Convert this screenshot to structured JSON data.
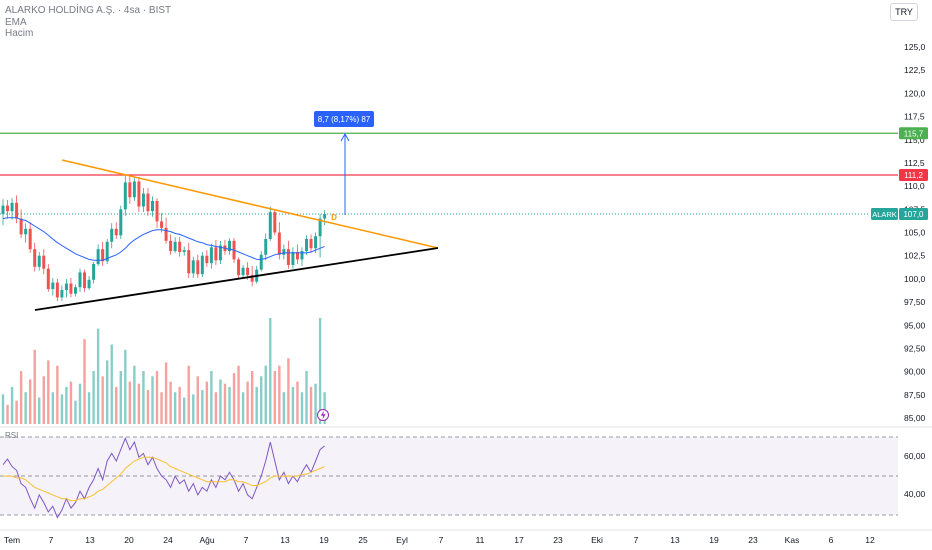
{
  "header": {
    "symbol_line": "ALARKO HOLDİNG A.Ş. · 4sa · BIST",
    "ema_label": "EMA",
    "volume_label": "Hacim",
    "currency": "TRY",
    "rsi_label": "RSI"
  },
  "colors": {
    "up": "#26a69a",
    "down": "#ef5350",
    "ema": "#2962ff",
    "trend_upper": "#ff9800",
    "trend_lower": "#000000",
    "green_line": "#4caf50",
    "red_line": "#f23645",
    "measure": "#2962ff",
    "rsi_line": "#7e57c2",
    "rsi_ma": "#fbc02d",
    "rsi_band": "#7e57c2"
  },
  "chart_data": {
    "type": "candlestick",
    "price_axis": {
      "ticks": [
        "125,0",
        "122,5",
        "120,0",
        "117,5",
        "115,0",
        "112,5",
        "110,0",
        "107,5",
        "105,0",
        "102,5",
        "100,0",
        "97,50",
        "95,00",
        "92,50",
        "90,00",
        "87,50",
        "85,00"
      ],
      "range": [
        85,
        125
      ]
    },
    "time_axis": {
      "labels": [
        "Tem",
        "7",
        "13",
        "20",
        "24",
        "Ağu",
        "7",
        "13",
        "19",
        "25",
        "Eyl",
        "7",
        "11",
        "17",
        "23",
        "Eki",
        "7",
        "13",
        "19",
        "23",
        "Kas",
        "6",
        "12"
      ]
    },
    "price_tags": [
      {
        "label": "115,7",
        "value": 115.7,
        "color": "#4caf50"
      },
      {
        "label": "111,2",
        "value": 111.2,
        "color": "#f23645"
      },
      {
        "label": "107,0",
        "value": 107.0,
        "color": "#26a69a",
        "symbol": "ALARK"
      }
    ],
    "horizontal_lines": [
      {
        "value": 115.7,
        "color": "#4caf50"
      },
      {
        "value": 111.2,
        "color": "#f23645"
      }
    ],
    "measure_label": "8,7 (8,17%) 87",
    "marker_label": "D",
    "last_price": 107.0,
    "ohlc": [
      [
        107.0,
        108.6,
        105.8,
        107.9
      ],
      [
        107.9,
        108.5,
        106.5,
        107.3
      ],
      [
        107.3,
        108.7,
        106.4,
        108.2
      ],
      [
        108.2,
        109.0,
        106.0,
        106.5
      ],
      [
        106.5,
        107.5,
        104.4,
        104.8
      ],
      [
        104.8,
        106.0,
        103.9,
        105.4
      ],
      [
        105.4,
        106.1,
        102.8,
        103.2
      ],
      [
        103.2,
        103.9,
        100.8,
        101.3
      ],
      [
        101.3,
        102.9,
        100.9,
        102.5
      ],
      [
        102.5,
        103.2,
        100.5,
        101.1
      ],
      [
        101.1,
        101.6,
        98.6,
        98.9
      ],
      [
        98.9,
        100.1,
        98.2,
        99.6
      ],
      [
        99.6,
        100.0,
        97.6,
        98.0
      ],
      [
        98.0,
        99.3,
        97.6,
        98.8
      ],
      [
        98.8,
        100.0,
        98.0,
        99.5
      ],
      [
        99.5,
        100.1,
        98.0,
        98.4
      ],
      [
        98.4,
        99.4,
        98.1,
        99.1
      ],
      [
        99.1,
        101.1,
        98.6,
        100.7
      ],
      [
        100.7,
        101.0,
        98.6,
        99.0
      ],
      [
        99.0,
        100.3,
        98.8,
        99.9
      ],
      [
        99.9,
        101.8,
        99.5,
        101.6
      ],
      [
        101.6,
        103.7,
        101.4,
        103.2
      ],
      [
        103.2,
        104.0,
        101.4,
        101.9
      ],
      [
        101.9,
        104.3,
        101.6,
        104.0
      ],
      [
        104.0,
        106.0,
        103.3,
        105.4
      ],
      [
        105.4,
        106.1,
        104.3,
        104.7
      ],
      [
        104.7,
        107.9,
        104.3,
        107.5
      ],
      [
        107.5,
        111.3,
        106.8,
        110.4
      ],
      [
        110.4,
        111.2,
        108.1,
        108.8
      ],
      [
        108.8,
        110.9,
        108.4,
        110.5
      ],
      [
        110.5,
        111.0,
        107.2,
        107.8
      ],
      [
        107.8,
        109.8,
        107.2,
        109.2
      ],
      [
        109.2,
        109.8,
        106.8,
        107.3
      ],
      [
        107.3,
        108.9,
        106.7,
        108.4
      ],
      [
        108.4,
        108.7,
        105.5,
        106.2
      ],
      [
        106.2,
        107.1,
        105.0,
        105.5
      ],
      [
        105.5,
        106.6,
        103.8,
        104.1
      ],
      [
        104.1,
        104.8,
        102.6,
        103.0
      ],
      [
        103.0,
        104.5,
        102.8,
        104.0
      ],
      [
        104.0,
        104.5,
        102.4,
        102.9
      ],
      [
        102.9,
        103.5,
        102.5,
        103.1
      ],
      [
        103.1,
        103.9,
        100.1,
        100.6
      ],
      [
        100.6,
        102.4,
        100.1,
        102.0
      ],
      [
        102.0,
        102.6,
        100.1,
        100.5
      ],
      [
        100.5,
        102.9,
        100.2,
        102.5
      ],
      [
        102.5,
        103.1,
        101.3,
        101.7
      ],
      [
        101.7,
        103.8,
        101.1,
        103.4
      ],
      [
        103.4,
        104.2,
        101.5,
        102.0
      ],
      [
        102.0,
        104.1,
        101.6,
        103.6
      ],
      [
        103.6,
        104.2,
        102.6,
        103.0
      ],
      [
        103.0,
        104.4,
        102.6,
        104.1
      ],
      [
        104.1,
        104.4,
        101.7,
        102.1
      ],
      [
        102.1,
        102.3,
        100.1,
        100.4
      ],
      [
        100.4,
        101.5,
        100.0,
        101.2
      ],
      [
        101.2,
        101.8,
        99.9,
        100.4
      ],
      [
        100.4,
        101.4,
        99.2,
        99.7
      ],
      [
        99.7,
        101.4,
        99.5,
        101.0
      ],
      [
        101.0,
        103.0,
        100.8,
        102.6
      ],
      [
        102.6,
        104.9,
        102.0,
        104.3
      ],
      [
        104.3,
        107.8,
        104.1,
        107.2
      ],
      [
        107.2,
        107.4,
        104.7,
        105.0
      ],
      [
        105.0,
        106.1,
        102.1,
        102.6
      ],
      [
        102.6,
        103.7,
        102.1,
        103.2
      ],
      [
        103.2,
        104.1,
        101.1,
        101.5
      ],
      [
        101.5,
        103.4,
        101.1,
        102.9
      ],
      [
        102.9,
        103.7,
        101.6,
        102.1
      ],
      [
        102.1,
        103.4,
        101.4,
        103.0
      ],
      [
        103.0,
        104.7,
        102.6,
        104.3
      ],
      [
        104.3,
        104.8,
        102.8,
        103.3
      ],
      [
        103.3,
        105.0,
        102.8,
        104.6
      ],
      [
        104.6,
        107.0,
        102.3,
        106.5
      ],
      [
        106.5,
        107.4,
        105.8,
        107.0
      ]
    ],
    "ema": [
      106.5,
      106.6,
      106.6,
      106.6,
      106.4,
      106.3,
      106.0,
      105.7,
      105.4,
      105.1,
      104.7,
      104.3,
      103.9,
      103.6,
      103.3,
      103.0,
      102.7,
      102.5,
      102.3,
      102.1,
      102.0,
      102.0,
      102.0,
      102.2,
      102.4,
      102.6,
      102.9,
      103.3,
      103.8,
      104.2,
      104.5,
      104.8,
      105.0,
      105.2,
      105.3,
      105.3,
      105.2,
      105.1,
      104.9,
      104.8,
      104.6,
      104.4,
      104.2,
      104.0,
      103.9,
      103.7,
      103.6,
      103.5,
      103.4,
      103.3,
      103.2,
      103.1,
      102.9,
      102.7,
      102.5,
      102.3,
      102.1,
      102.1,
      102.2,
      102.4,
      102.6,
      102.7,
      102.8,
      102.8,
      102.8,
      102.8,
      102.8,
      102.8,
      102.9,
      103.1,
      103.3,
      103.5
    ],
    "volume": [
      0.28,
      0.18,
      0.35,
      0.22,
      0.5,
      0.3,
      0.42,
      0.7,
      0.25,
      0.45,
      0.6,
      0.3,
      0.55,
      0.28,
      0.35,
      0.4,
      0.22,
      0.38,
      0.8,
      0.3,
      0.5,
      0.9,
      0.45,
      0.6,
      0.75,
      0.35,
      0.5,
      0.7,
      0.4,
      0.55,
      0.38,
      0.5,
      0.32,
      0.45,
      0.5,
      0.3,
      0.58,
      0.4,
      0.3,
      0.35,
      0.25,
      0.55,
      0.28,
      0.45,
      0.32,
      0.4,
      0.5,
      0.3,
      0.42,
      0.38,
      0.35,
      0.48,
      0.55,
      0.3,
      0.4,
      0.5,
      0.35,
      0.45,
      0.55,
      1.0,
      0.5,
      0.55,
      0.3,
      0.62,
      0.35,
      0.4,
      0.3,
      0.5,
      0.35,
      0.38,
      1.0,
      0.3
    ],
    "rsi": {
      "ticks": [
        "60,00",
        "40,00"
      ],
      "range": [
        25,
        78
      ],
      "values": [
        58,
        61,
        57,
        55,
        48,
        46,
        40,
        35,
        42,
        38,
        33,
        36,
        30,
        34,
        40,
        35,
        38,
        44,
        40,
        46,
        50,
        56,
        50,
        60,
        64,
        60,
        66,
        72,
        66,
        70,
        62,
        64,
        58,
        62,
        56,
        52,
        50,
        46,
        52,
        48,
        50,
        44,
        48,
        42,
        46,
        44,
        50,
        46,
        52,
        50,
        54,
        50,
        44,
        48,
        42,
        40,
        46,
        52,
        60,
        70,
        60,
        50,
        54,
        48,
        52,
        49,
        54,
        58,
        54,
        60,
        66,
        68
      ],
      "ma": [
        52,
        52,
        52,
        51,
        51,
        50,
        48,
        46,
        45,
        44,
        43,
        42,
        41,
        40,
        40,
        39,
        39,
        40,
        40,
        41,
        42,
        44,
        45,
        47,
        49,
        51,
        53,
        56,
        58,
        60,
        61,
        62,
        62,
        62,
        61,
        60,
        59,
        57,
        56,
        55,
        54,
        53,
        52,
        51,
        50,
        49,
        49,
        49,
        49,
        49,
        50,
        50,
        49,
        49,
        48,
        47,
        47,
        48,
        49,
        51,
        52,
        52,
        52,
        52,
        52,
        52,
        53,
        53,
        54,
        55,
        56,
        57
      ]
    }
  }
}
